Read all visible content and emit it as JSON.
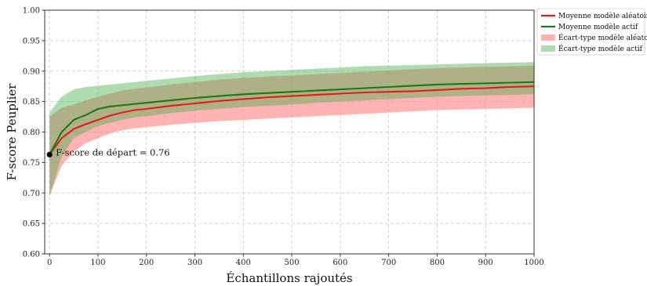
{
  "chart_data": {
    "type": "line",
    "xlabel": "Échantillons rajoutés",
    "ylabel": "F-score Peuplier",
    "xlim": [
      -10,
      1000
    ],
    "ylim": [
      0.6,
      1.0
    ],
    "xticks": [
      0,
      100,
      200,
      300,
      400,
      500,
      600,
      700,
      800,
      900,
      1000
    ],
    "yticks": [
      0.6,
      0.65,
      0.7,
      0.75,
      0.8,
      0.85,
      0.9,
      0.95,
      1.0
    ],
    "x_tick_labels": [
      "0",
      "100",
      "200",
      "300",
      "400",
      "500",
      "600",
      "700",
      "800",
      "900",
      "1000"
    ],
    "y_tick_labels": [
      "0.60",
      "0.65",
      "0.70",
      "0.75",
      "0.80",
      "0.85",
      "0.90",
      "0.95",
      "1.00"
    ],
    "grid": true,
    "legend_position": "outside-top-right",
    "annotation": {
      "text": "F-score de départ = 0.76",
      "x": 0,
      "y": 0.763
    },
    "x": [
      0,
      25,
      50,
      75,
      100,
      125,
      150,
      175,
      200,
      250,
      300,
      350,
      400,
      450,
      500,
      550,
      600,
      650,
      700,
      750,
      800,
      850,
      900,
      950,
      1000
    ],
    "series": [
      {
        "name": "Moyenne modèle aléatoire",
        "color": "#e41a1c",
        "kind": "line",
        "values": [
          0.763,
          0.79,
          0.805,
          0.813,
          0.82,
          0.827,
          0.832,
          0.836,
          0.838,
          0.843,
          0.847,
          0.851,
          0.854,
          0.857,
          0.859,
          0.861,
          0.863,
          0.865,
          0.866,
          0.867,
          0.869,
          0.871,
          0.872,
          0.874,
          0.875
        ]
      },
      {
        "name": "Moyenne modèle actif",
        "color": "#1a7a1a",
        "kind": "line",
        "values": [
          0.763,
          0.8,
          0.82,
          0.828,
          0.838,
          0.842,
          0.844,
          0.846,
          0.848,
          0.852,
          0.856,
          0.859,
          0.862,
          0.864,
          0.866,
          0.868,
          0.87,
          0.872,
          0.874,
          0.876,
          0.878,
          0.879,
          0.88,
          0.881,
          0.882
        ]
      },
      {
        "name": "Écart-type modèle aléatoire",
        "color": "#ff8080",
        "kind": "band",
        "lower": [
          0.695,
          0.745,
          0.768,
          0.782,
          0.79,
          0.798,
          0.803,
          0.806,
          0.808,
          0.812,
          0.815,
          0.818,
          0.82,
          0.822,
          0.824,
          0.826,
          0.828,
          0.83,
          0.832,
          0.834,
          0.836,
          0.837,
          0.838,
          0.839,
          0.84
        ],
        "upper": [
          0.825,
          0.84,
          0.845,
          0.852,
          0.858,
          0.863,
          0.868,
          0.871,
          0.873,
          0.878,
          0.882,
          0.886,
          0.889,
          0.891,
          0.893,
          0.895,
          0.897,
          0.899,
          0.901,
          0.903,
          0.905,
          0.906,
          0.907,
          0.908,
          0.909
        ]
      },
      {
        "name": "Écart-type modèle actif",
        "color": "#4caf50",
        "kind": "band",
        "lower": [
          0.695,
          0.76,
          0.79,
          0.8,
          0.81,
          0.815,
          0.82,
          0.824,
          0.826,
          0.831,
          0.835,
          0.838,
          0.841,
          0.843,
          0.845,
          0.848,
          0.85,
          0.852,
          0.854,
          0.856,
          0.858,
          0.859,
          0.86,
          0.861,
          0.862
        ],
        "upper": [
          0.832,
          0.858,
          0.87,
          0.874,
          0.876,
          0.878,
          0.88,
          0.882,
          0.884,
          0.888,
          0.892,
          0.895,
          0.898,
          0.9,
          0.902,
          0.904,
          0.906,
          0.908,
          0.909,
          0.91,
          0.911,
          0.912,
          0.913,
          0.914,
          0.915
        ]
      }
    ]
  }
}
